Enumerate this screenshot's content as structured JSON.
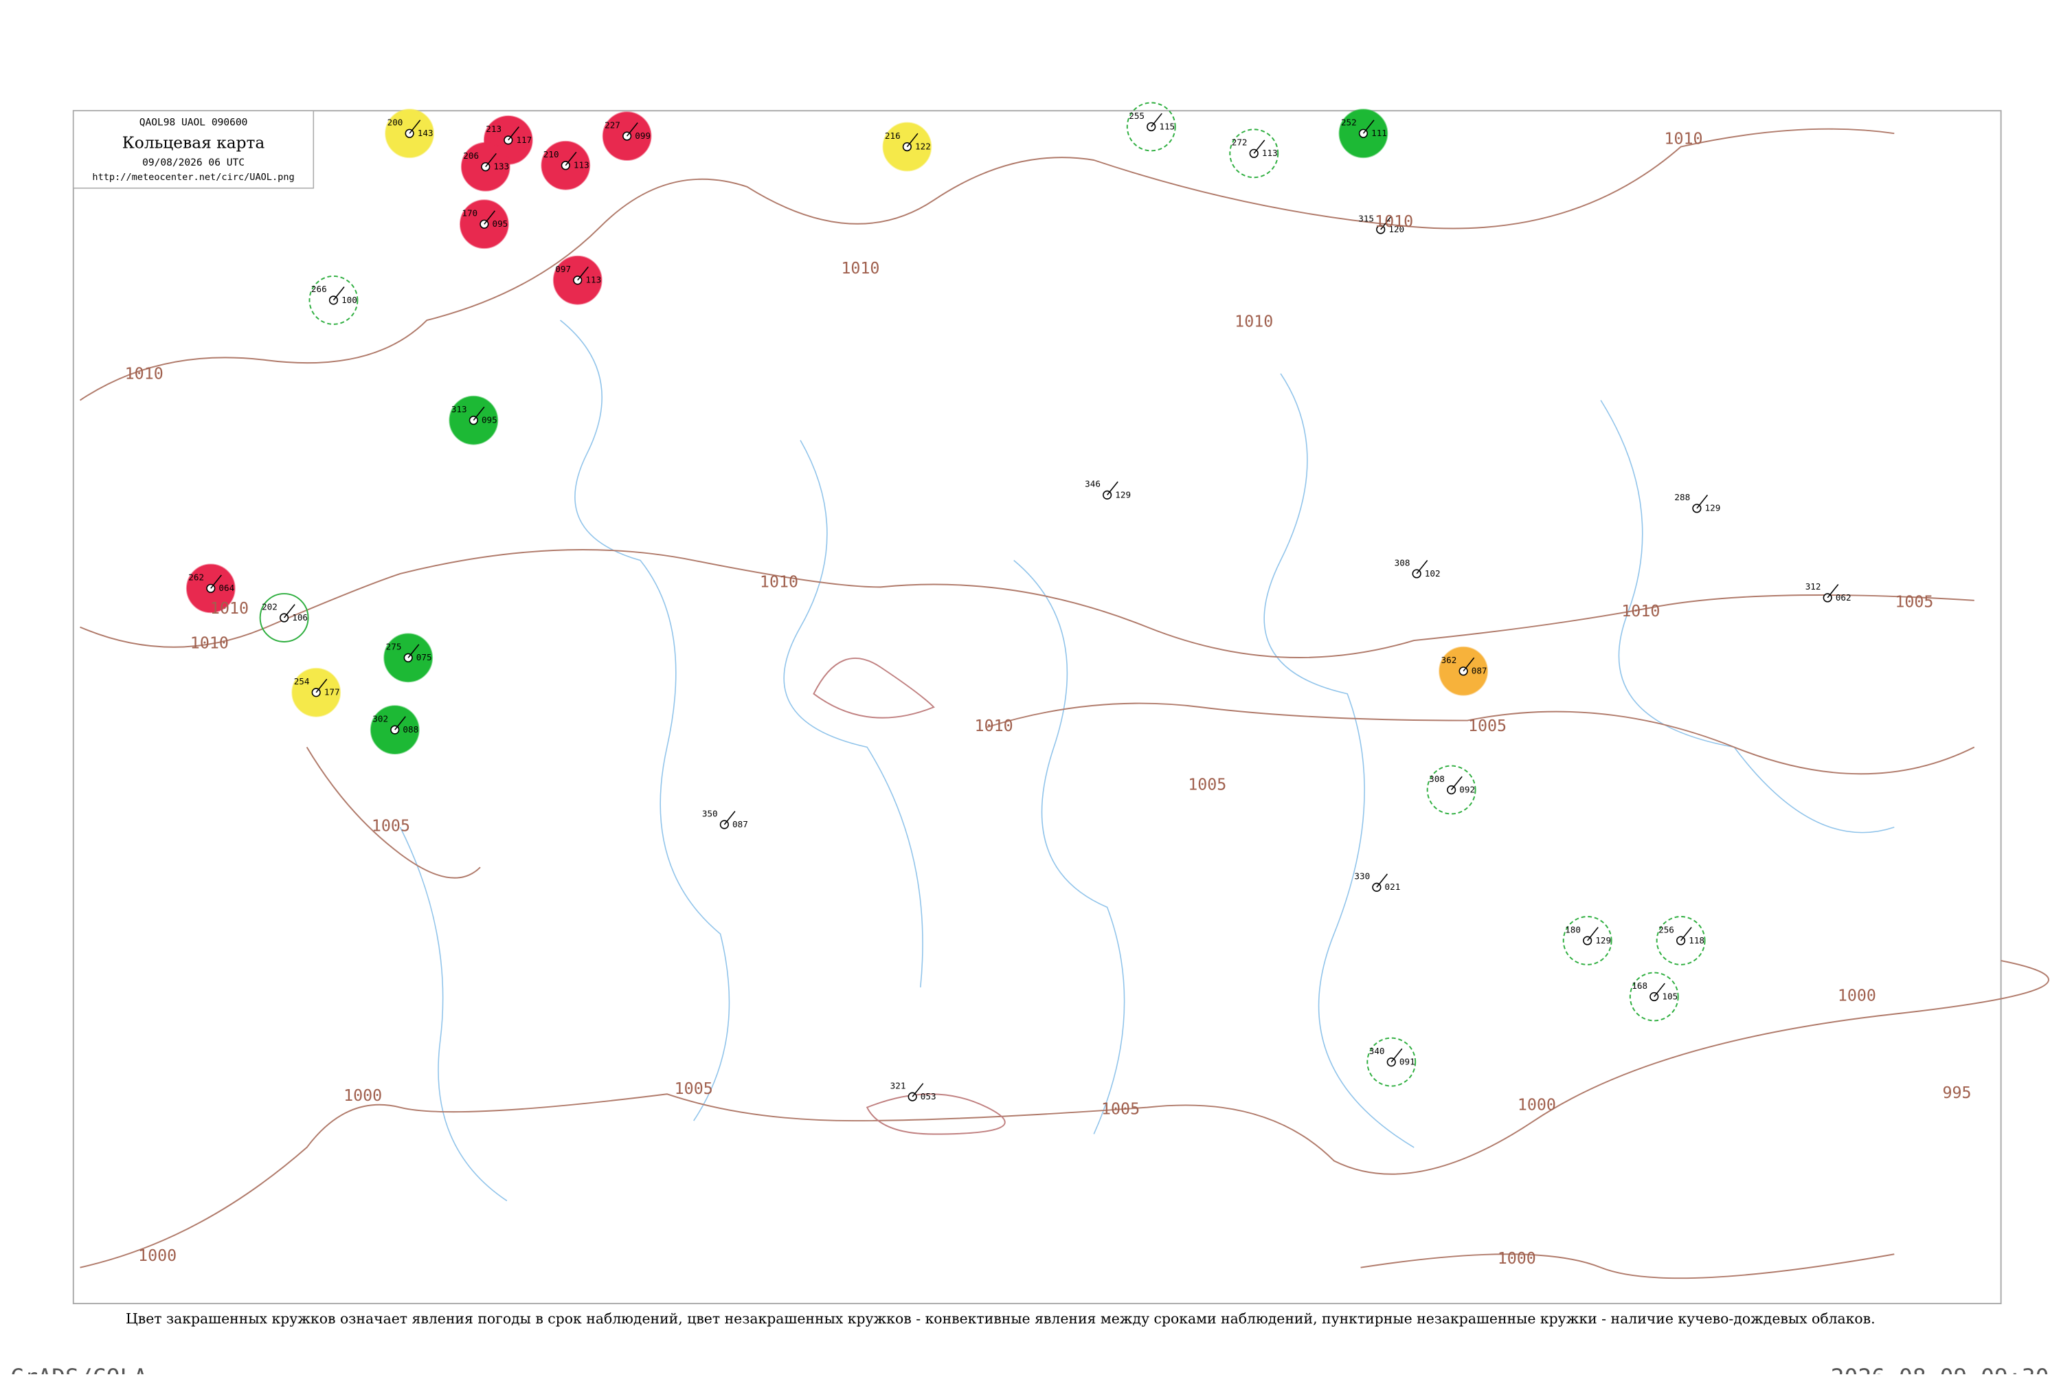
{
  "header": {
    "code": "QAOL98  UAOL  090600",
    "title": "Кольцевая карта",
    "datetime": "09/08/2026 06 UTC",
    "url": "http://meteocenter.net/circ/UAOL.png"
  },
  "caption": "Цвет закрашенных кружков означает явления погоды в срок наблюдений, цвет незакрашенных кружков - конвективные явления между сроками наблюдений, пунктирные незакрашенные кружки - наличие кучево-дождевых облаков.",
  "footer": {
    "left": "GrADS/COLA",
    "right": "2026-08-09-09:30"
  },
  "isobar_labels": [
    "1010",
    "1010",
    "1010",
    "1010",
    "1010",
    "1010",
    "1010",
    "1010",
    "1010",
    "1010",
    "1005",
    "1005",
    "1005",
    "1005",
    "1005",
    "1005",
    "1000",
    "1000",
    "1000",
    "1000",
    "1000",
    "995"
  ],
  "stations": [
    {
      "pressure": "200",
      "tendency": "143",
      "color": "#f5e94a",
      "style": "filled"
    },
    {
      "pressure": "213",
      "tendency": "117",
      "color": "#e8294f",
      "style": "filled"
    },
    {
      "pressure": "210",
      "tendency": "113",
      "color": "#e8294f",
      "style": "filled"
    },
    {
      "pressure": "227",
      "tendency": "099",
      "color": "#e8294f",
      "style": "filled"
    },
    {
      "pressure": "206",
      "tendency": "133",
      "color": "#e8294f",
      "style": "filled"
    },
    {
      "pressure": "170",
      "tendency": "095",
      "color": "#e8294f",
      "style": "filled"
    },
    {
      "pressure": "097",
      "tendency": "113",
      "color": "#e8294f",
      "style": "filled"
    },
    {
      "pressure": "262",
      "tendency": "064",
      "color": "#e8294f",
      "style": "filled"
    },
    {
      "pressure": "216",
      "tendency": "122",
      "color": "#f5e94a",
      "style": "filled"
    },
    {
      "pressure": "254",
      "tendency": "177",
      "color": "#f5e94a",
      "style": "filled"
    },
    {
      "pressure": "252",
      "tendency": "111",
      "color": "#1db935",
      "style": "filled"
    },
    {
      "pressure": "313",
      "tendency": "095",
      "color": "#1db935",
      "style": "filled"
    },
    {
      "pressure": "275",
      "tendency": "075",
      "color": "#1db935",
      "style": "filled"
    },
    {
      "pressure": "302",
      "tendency": "088",
      "color": "#1db935",
      "style": "filled"
    },
    {
      "pressure": "362",
      "tendency": "087",
      "color": "#f7b23b",
      "style": "filled"
    },
    {
      "pressure": "255",
      "tendency": "115",
      "color": "#2dae3e",
      "style": "dashed"
    },
    {
      "pressure": "272",
      "tendency": "113",
      "color": "#2dae3e",
      "style": "dashed"
    },
    {
      "pressure": "266",
      "tendency": "100",
      "color": "#2dae3e",
      "style": "dashed"
    },
    {
      "pressure": "308",
      "tendency": "092",
      "color": "#2dae3e",
      "style": "dashed"
    },
    {
      "pressure": "340",
      "tendency": "091",
      "color": "#2dae3e",
      "style": "dashed"
    },
    {
      "pressure": "180",
      "tendency": "129",
      "color": "#2dae3e",
      "style": "dashed"
    },
    {
      "pressure": "256",
      "tendency": "118",
      "color": "#2dae3e",
      "style": "dashed"
    },
    {
      "pressure": "168",
      "tendency": "105",
      "color": "#2dae3e",
      "style": "dashed"
    },
    {
      "pressure": "202",
      "tendency": "106",
      "color": "#2dae3e",
      "style": "open"
    },
    {
      "pressure": "350",
      "tendency": "087",
      "color": "#000000",
      "style": "none"
    },
    {
      "pressure": "346",
      "tendency": "129",
      "color": "#000000",
      "style": "none"
    },
    {
      "pressure": "321",
      "tendency": "053",
      "color": "#000000",
      "style": "none"
    },
    {
      "pressure": "308",
      "tendency": "102",
      "color": "#000000",
      "style": "none"
    },
    {
      "pressure": "315",
      "tendency": "120",
      "color": "#000000",
      "style": "none"
    },
    {
      "pressure": "288",
      "tendency": "129",
      "color": "#000000",
      "style": "none"
    },
    {
      "pressure": "330",
      "tendency": "021",
      "color": "#000000",
      "style": "none"
    },
    {
      "pressure": "312",
      "tendency": "062",
      "color": "#000000",
      "style": "none"
    }
  ]
}
